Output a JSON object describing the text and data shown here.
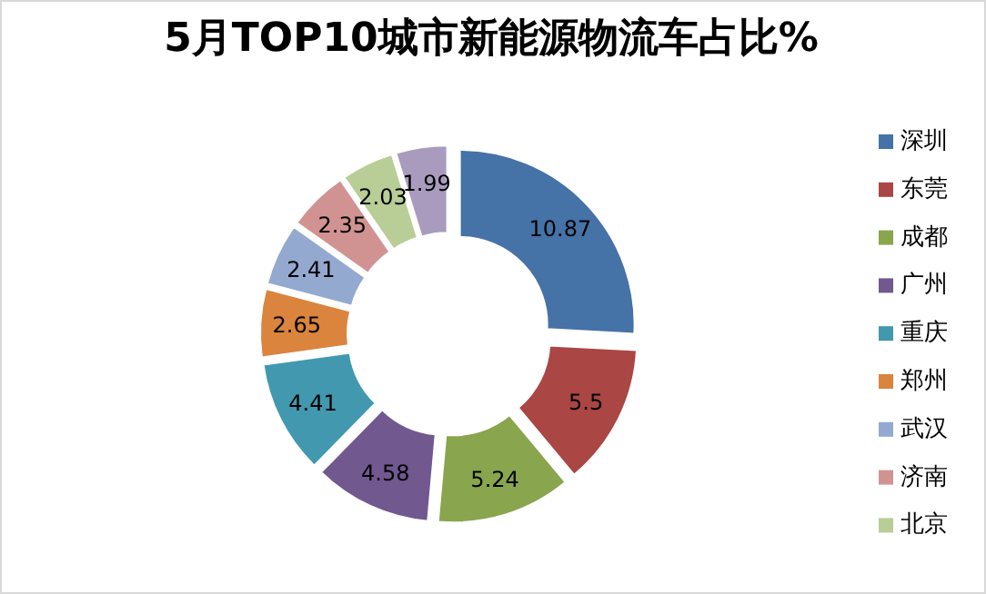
{
  "chart_data": {
    "type": "donut",
    "title": "5月TOP10城市新能源物流车占比%",
    "categories": [
      "深圳",
      "东莞",
      "成都",
      "广州",
      "重庆",
      "郑州",
      "武汉",
      "济南",
      "北京",
      null
    ],
    "values": [
      10.87,
      5.5,
      5.24,
      4.58,
      4.41,
      2.65,
      2.41,
      2.35,
      2.03,
      1.99
    ],
    "colors": [
      "#4572a7",
      "#aa4643",
      "#89a54e",
      "#71588f",
      "#4198af",
      "#db843d",
      "#93a9cf",
      "#d19392",
      "#b9cd96",
      "#a99bbd"
    ],
    "data_labels": true,
    "legend": "right"
  }
}
